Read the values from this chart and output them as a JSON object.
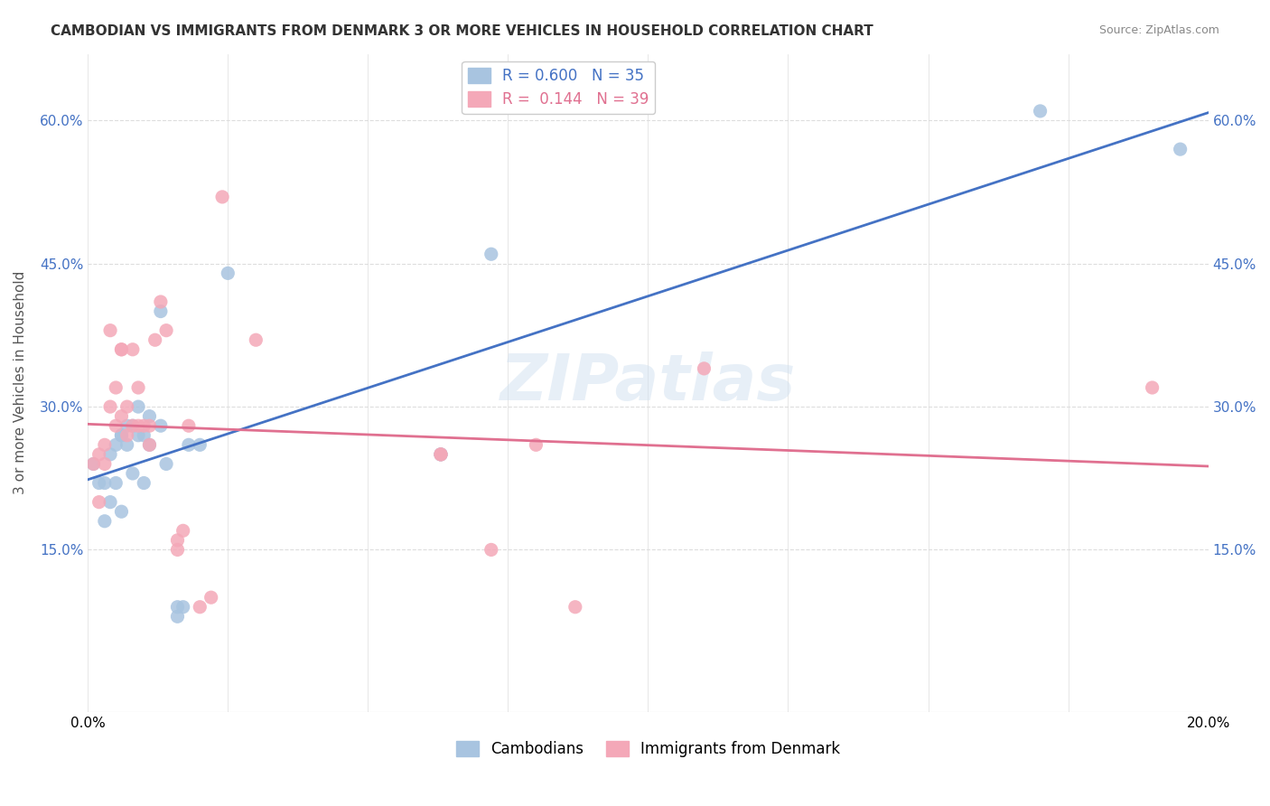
{
  "title": "CAMBODIAN VS IMMIGRANTS FROM DENMARK 3 OR MORE VEHICLES IN HOUSEHOLD CORRELATION CHART",
  "source": "Source: ZipAtlas.com",
  "ylabel": "3 or more Vehicles in Household",
  "watermark": "ZIPatlas",
  "legend_r_labels": [
    "R = 0.600   N = 35",
    "R =  0.144   N = 39"
  ],
  "legend_labels": [
    "Cambodians",
    "Immigrants from Denmark"
  ],
  "xlim": [
    0.0,
    0.2
  ],
  "ylim": [
    -0.02,
    0.67
  ],
  "yticks": [
    0.15,
    0.3,
    0.45,
    0.6
  ],
  "ytick_labels": [
    "15.0%",
    "30.0%",
    "45.0%",
    "60.0%"
  ],
  "xtick_positions": [
    0.0,
    0.025,
    0.05,
    0.075,
    0.1,
    0.125,
    0.15,
    0.175,
    0.2
  ],
  "xtick_labels": [
    "0.0%",
    "",
    "",
    "",
    "",
    "",
    "",
    "",
    "20.0%"
  ],
  "blue_color": "#a8c4e0",
  "pink_color": "#f4a8b8",
  "blue_line_color": "#4472c4",
  "pink_line_color": "#e07090",
  "background_color": "#ffffff",
  "grid_color": "#dddddd",
  "blue_x": [
    0.001,
    0.002,
    0.003,
    0.003,
    0.004,
    0.004,
    0.005,
    0.005,
    0.006,
    0.006,
    0.006,
    0.007,
    0.007,
    0.008,
    0.008,
    0.009,
    0.009,
    0.01,
    0.01,
    0.011,
    0.011,
    0.013,
    0.013,
    0.014,
    0.016,
    0.016,
    0.017,
    0.018,
    0.02,
    0.025,
    0.063,
    0.063,
    0.072,
    0.17,
    0.195
  ],
  "blue_y": [
    0.24,
    0.22,
    0.22,
    0.18,
    0.25,
    0.2,
    0.26,
    0.22,
    0.27,
    0.27,
    0.19,
    0.28,
    0.26,
    0.28,
    0.23,
    0.3,
    0.27,
    0.27,
    0.22,
    0.29,
    0.26,
    0.28,
    0.4,
    0.24,
    0.08,
    0.09,
    0.09,
    0.26,
    0.26,
    0.44,
    0.25,
    0.25,
    0.46,
    0.61,
    0.57
  ],
  "pink_x": [
    0.001,
    0.002,
    0.002,
    0.003,
    0.003,
    0.004,
    0.004,
    0.005,
    0.005,
    0.006,
    0.006,
    0.006,
    0.007,
    0.007,
    0.008,
    0.008,
    0.009,
    0.009,
    0.01,
    0.011,
    0.011,
    0.012,
    0.013,
    0.014,
    0.016,
    0.016,
    0.017,
    0.018,
    0.02,
    0.022,
    0.024,
    0.03,
    0.063,
    0.063,
    0.072,
    0.08,
    0.087,
    0.11,
    0.19
  ],
  "pink_y": [
    0.24,
    0.25,
    0.2,
    0.26,
    0.24,
    0.38,
    0.3,
    0.32,
    0.28,
    0.36,
    0.36,
    0.29,
    0.3,
    0.27,
    0.36,
    0.28,
    0.32,
    0.28,
    0.28,
    0.28,
    0.26,
    0.37,
    0.41,
    0.38,
    0.16,
    0.15,
    0.17,
    0.28,
    0.09,
    0.1,
    0.52,
    0.37,
    0.25,
    0.25,
    0.15,
    0.26,
    0.09,
    0.34,
    0.32
  ]
}
